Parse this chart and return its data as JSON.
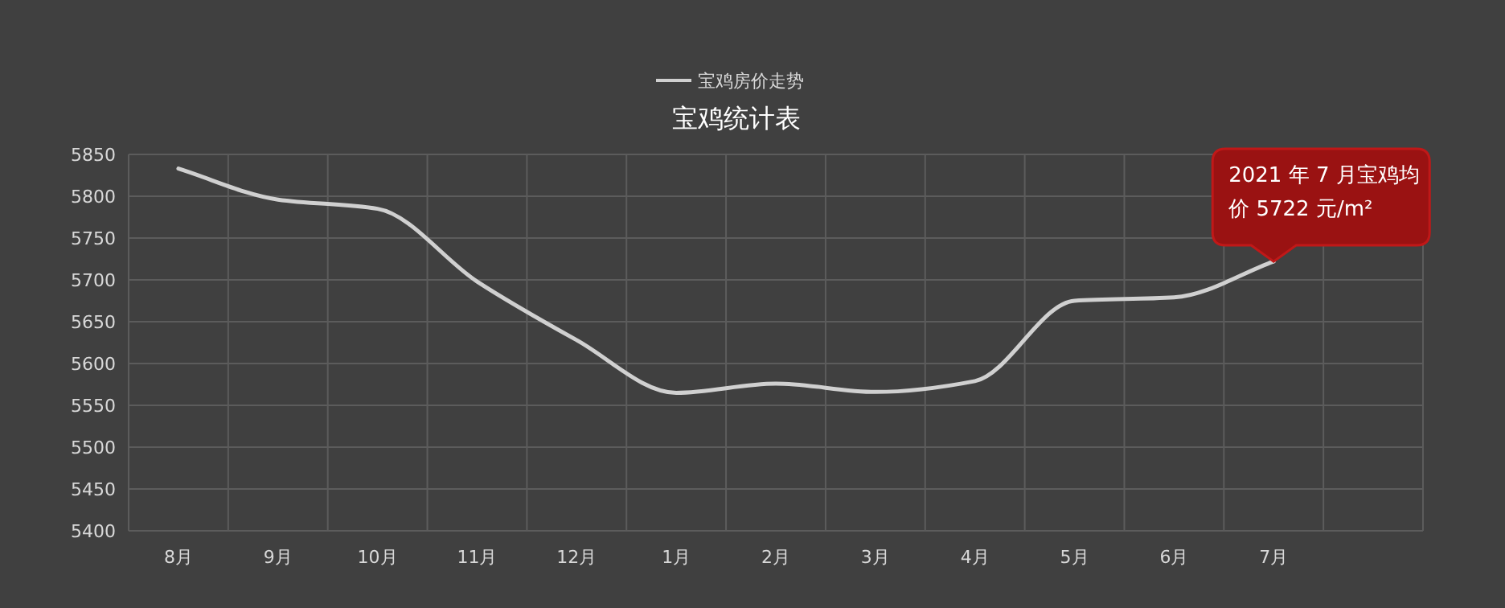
{
  "chart_data": {
    "type": "line",
    "title": "宝鸡统计表",
    "categories": [
      "8月",
      "9月",
      "10月",
      "11月",
      "12月",
      "1月",
      "2月",
      "3月",
      "4月",
      "5月",
      "6月",
      "7月"
    ],
    "series": [
      {
        "name": "宝鸡房价走势",
        "color": "#d0d0d0",
        "values": [
          5833,
          5796,
          5785,
          5698,
          5628,
          5565,
          5576,
          5566,
          5579,
          5675,
          5679,
          5722
        ]
      }
    ],
    "ylim": [
      5400,
      5850
    ],
    "yticks": [
      5400,
      5450,
      5500,
      5550,
      5600,
      5650,
      5700,
      5750,
      5800,
      5850
    ],
    "grid": true,
    "legend": "top",
    "marker": "none",
    "line_style": "solid",
    "annotations": [
      {
        "text": "2021 年 7 月宝鸡均价 5722 元/m²",
        "x": "7月",
        "y": 5722
      }
    ]
  }
}
